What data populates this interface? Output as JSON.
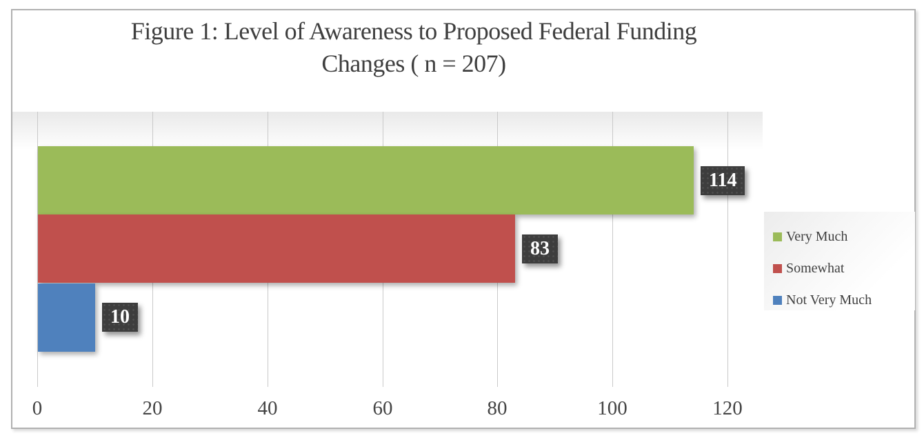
{
  "title": {
    "line1": "Figure 1: Level of Awareness to Proposed Federal Funding",
    "line2": "Changes ( n = 207)"
  },
  "chart_data": {
    "type": "bar",
    "orientation": "horizontal",
    "title": "Figure 1: Level of Awareness to Proposed Federal Funding Changes ( n = 207)",
    "categories": [
      "Very Much",
      "Somewhat",
      "Not Very Much"
    ],
    "values": [
      114,
      83,
      10
    ],
    "data_labels": [
      "114",
      "83",
      "10"
    ],
    "bar_colors": [
      "#9BBB59",
      "#C0504D",
      "#4F81BD"
    ],
    "xlim": [
      0,
      120
    ],
    "x_ticks": [
      "0",
      "20",
      "40",
      "60",
      "80",
      "100",
      "120"
    ],
    "grid": true,
    "legend": {
      "position": "right",
      "entries": [
        {
          "label": "Very Much",
          "color": "#9BBB59"
        },
        {
          "label": "Somewhat",
          "color": "#C0504D"
        },
        {
          "label": "Not Very Much",
          "color": "#4F81BD"
        }
      ]
    }
  },
  "colors": {
    "grid": "#c9c9c9",
    "text": "#3f3f3f",
    "label_box": "#3d3d3d",
    "label_text": "#ffffff",
    "frame_border": "#b0b0b0"
  }
}
